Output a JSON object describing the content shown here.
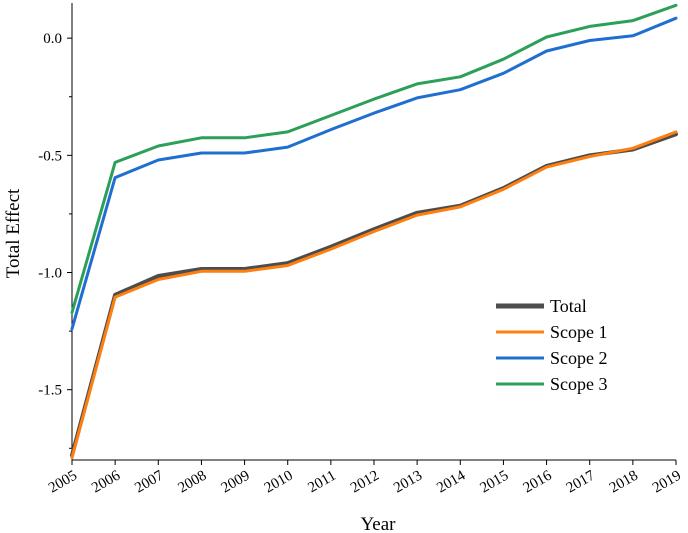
{
  "chart_data": {
    "type": "line",
    "title": "",
    "xlabel": "Year",
    "ylabel": "Total Effect",
    "x": [
      "2005",
      "2006",
      "2007",
      "2008",
      "2009",
      "2010",
      "2011",
      "2012",
      "2013",
      "2014",
      "2015",
      "2016",
      "2017",
      "2018",
      "2019"
    ],
    "ylim": [
      -1.8,
      0.15
    ],
    "yticks": [
      "0.0",
      "-0.5",
      "-1.0",
      "-1.5"
    ],
    "grid": false,
    "legend_position": "lower-right",
    "series": [
      {
        "name": "Total",
        "color": "#4d4d4d",
        "values": [
          -1.78,
          -1.095,
          -1.015,
          -0.985,
          -0.985,
          -0.96,
          -0.89,
          -0.815,
          -0.745,
          -0.715,
          -0.64,
          -0.545,
          -0.5,
          -0.475,
          -0.41
        ]
      },
      {
        "name": "Scope 1",
        "color": "#ff7f0e",
        "values": [
          -1.79,
          -1.105,
          -1.03,
          -0.995,
          -0.995,
          -0.97,
          -0.9,
          -0.825,
          -0.755,
          -0.72,
          -0.645,
          -0.55,
          -0.505,
          -0.47,
          -0.4
        ]
      },
      {
        "name": "Scope 2",
        "color": "#1f6fd1",
        "values": [
          -1.24,
          -0.595,
          -0.52,
          -0.49,
          -0.49,
          -0.465,
          -0.39,
          -0.32,
          -0.255,
          -0.22,
          -0.15,
          -0.055,
          -0.01,
          0.01,
          0.085
        ]
      },
      {
        "name": "Scope 3",
        "color": "#2ca05a",
        "values": [
          -1.17,
          -0.53,
          -0.46,
          -0.425,
          -0.425,
          -0.4,
          -0.33,
          -0.26,
          -0.195,
          -0.165,
          -0.09,
          0.005,
          0.05,
          0.075,
          0.14
        ]
      }
    ]
  }
}
